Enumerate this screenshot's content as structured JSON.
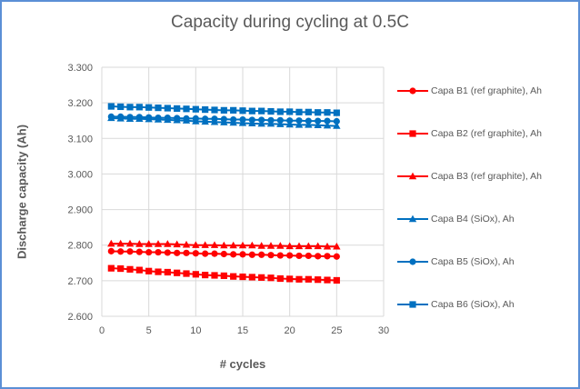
{
  "chart_data": {
    "type": "line",
    "title": "Capacity during cycling at 0.5C",
    "xlabel": "# cycles",
    "ylabel": "Discharge capacity (Ah)",
    "xlim": [
      0,
      30
    ],
    "ylim": [
      2.6,
      3.3
    ],
    "xticks": [
      "0",
      "5",
      "10",
      "15",
      "20",
      "25",
      "30"
    ],
    "yticks": [
      "2.600",
      "2.700",
      "2.800",
      "2.900",
      "3.000",
      "3.100",
      "3.200",
      "3.300"
    ],
    "grid": true,
    "legend_position": "right",
    "x": [
      1,
      2,
      3,
      4,
      5,
      6,
      7,
      8,
      9,
      10,
      11,
      12,
      13,
      14,
      15,
      16,
      17,
      18,
      19,
      20,
      21,
      22,
      23,
      24,
      25
    ],
    "series": [
      {
        "name": "Capa B1 (ref graphite), Ah",
        "color": "#ff0000",
        "marker": "circle",
        "values": [
          2.783,
          2.782,
          2.782,
          2.781,
          2.78,
          2.78,
          2.779,
          2.778,
          2.778,
          2.777,
          2.776,
          2.776,
          2.775,
          2.774,
          2.774,
          2.773,
          2.773,
          2.772,
          2.771,
          2.771,
          2.77,
          2.77,
          2.769,
          2.769,
          2.768
        ]
      },
      {
        "name": "Capa B2 (ref graphite), Ah",
        "color": "#ff0000",
        "marker": "square",
        "values": [
          2.735,
          2.734,
          2.732,
          2.73,
          2.727,
          2.725,
          2.724,
          2.722,
          2.72,
          2.718,
          2.716,
          2.715,
          2.714,
          2.712,
          2.711,
          2.71,
          2.709,
          2.708,
          2.706,
          2.705,
          2.704,
          2.704,
          2.703,
          2.702,
          2.701
        ]
      },
      {
        "name": "Capa B3 (ref graphite), Ah",
        "color": "#ff0000",
        "marker": "triangle",
        "values": [
          2.804,
          2.804,
          2.804,
          2.803,
          2.803,
          2.803,
          2.803,
          2.802,
          2.801,
          2.8,
          2.8,
          2.8,
          2.799,
          2.799,
          2.799,
          2.799,
          2.798,
          2.798,
          2.798,
          2.797,
          2.797,
          2.797,
          2.797,
          2.796,
          2.796
        ]
      },
      {
        "name": "Capa B4 (SiOx), Ah",
        "color": "#0070c0",
        "marker": "triangle",
        "values": [
          3.157,
          3.156,
          3.155,
          3.155,
          3.154,
          3.153,
          3.152,
          3.151,
          3.15,
          3.148,
          3.147,
          3.146,
          3.145,
          3.144,
          3.143,
          3.142,
          3.141,
          3.141,
          3.14,
          3.139,
          3.138,
          3.138,
          3.137,
          3.136,
          3.135
        ]
      },
      {
        "name": "Capa B5 (SiOx), Ah",
        "color": "#0070c0",
        "marker": "circle",
        "values": [
          3.161,
          3.161,
          3.16,
          3.16,
          3.159,
          3.158,
          3.158,
          3.157,
          3.156,
          3.156,
          3.155,
          3.155,
          3.154,
          3.153,
          3.153,
          3.152,
          3.152,
          3.151,
          3.151,
          3.15,
          3.15,
          3.149,
          3.149,
          3.149,
          3.148
        ]
      },
      {
        "name": "Capa B6 (SiOx), Ah",
        "color": "#0070c0",
        "marker": "square",
        "values": [
          3.19,
          3.189,
          3.188,
          3.188,
          3.187,
          3.186,
          3.185,
          3.184,
          3.183,
          3.182,
          3.181,
          3.18,
          3.179,
          3.179,
          3.178,
          3.177,
          3.177,
          3.176,
          3.175,
          3.175,
          3.174,
          3.174,
          3.173,
          3.173,
          3.172
        ]
      }
    ]
  }
}
